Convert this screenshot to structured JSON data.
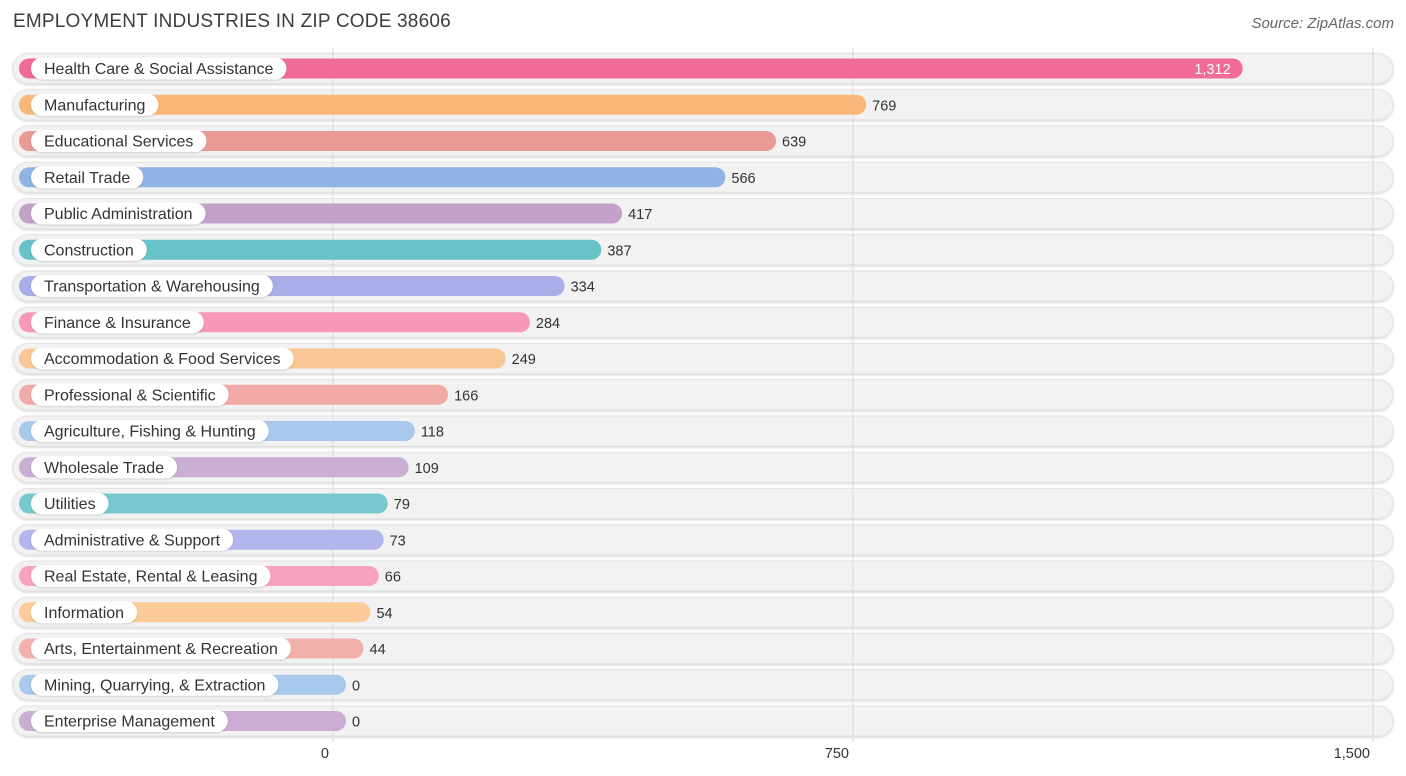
{
  "header": {
    "title": "EMPLOYMENT INDUSTRIES IN ZIP CODE 38606",
    "source": "Source: ZipAtlas.com"
  },
  "chart_data": {
    "type": "bar",
    "orientation": "horizontal",
    "title": "EMPLOYMENT INDUSTRIES IN ZIP CODE 38606",
    "xlabel": "",
    "ylabel": "",
    "xlim": [
      0,
      1500
    ],
    "xticks": [
      0,
      750,
      1500
    ],
    "xtick_labels": [
      "0",
      "750",
      "1,500"
    ],
    "grid": true,
    "categories": [
      "Health Care & Social Assistance",
      "Manufacturing",
      "Educational Services",
      "Retail Trade",
      "Public Administration",
      "Construction",
      "Transportation & Warehousing",
      "Finance & Insurance",
      "Accommodation & Food Services",
      "Professional & Scientific",
      "Agriculture, Fishing & Hunting",
      "Wholesale Trade",
      "Utilities",
      "Administrative & Support",
      "Real Estate, Rental & Leasing",
      "Information",
      "Arts, Entertainment & Recreation",
      "Mining, Quarrying, & Extraction",
      "Enterprise Management"
    ],
    "values": [
      1312,
      769,
      639,
      566,
      417,
      387,
      334,
      284,
      249,
      166,
      118,
      109,
      79,
      73,
      66,
      54,
      44,
      0,
      0
    ],
    "value_labels": [
      "1,312",
      "769",
      "639",
      "566",
      "417",
      "387",
      "334",
      "284",
      "249",
      "166",
      "118",
      "109",
      "79",
      "73",
      "66",
      "54",
      "44",
      "0",
      "0"
    ],
    "colors": [
      "#f06b95",
      "#f9b87a",
      "#ea9a94",
      "#8fb4e4",
      "#c3a1c9",
      "#68c3c9",
      "#a9aee9",
      "#f69ab8",
      "#f9c793",
      "#f2aaa6",
      "#a8c8ec",
      "#cbaed3",
      "#77c9cd",
      "#b2b6ec",
      "#f7a3bd",
      "#fbcc99",
      "#f2b0ab",
      "#a8c8ec",
      "#cbaed3"
    ]
  }
}
